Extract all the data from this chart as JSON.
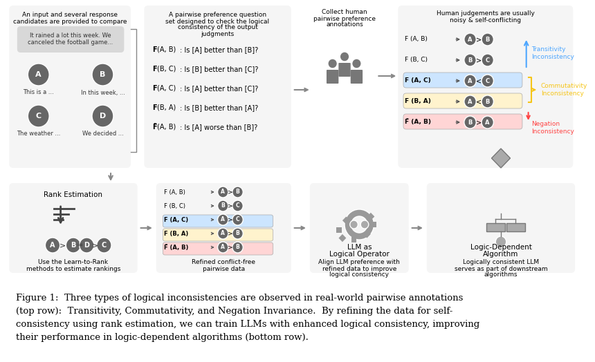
{
  "figure_width": 8.6,
  "figure_height": 5.24,
  "dpi": 100,
  "bg_color": "#ffffff",
  "caption_lines": [
    "Figure 1:  Three types of logical inconsistencies are observed in real-world pairwise annotations",
    "(top row):  Transitivity, Commutativity, and Negation Invariance.  By refining the data for self-",
    "consistency using rank estimation, we can train LLMs with enhanced logical consistency, improving",
    "their performance in logic-dependent algorithms (bottom row)."
  ],
  "panel_bg": "#f0f0f0",
  "panel_bg2": "#e8e8e8",
  "dark_circle": "#555555",
  "blue_color": "#4da6ff",
  "yellow_color": "#f5c518",
  "red_color": "#ff4444",
  "orange_color": "#ff8c00",
  "blue_box": "#cce5ff",
  "yellow_box": "#fff3cd",
  "red_box": "#ffd5d5",
  "arrow_color": "#555555",
  "transitivity_color": "#4da6ff",
  "commutativity_color": "#f5c518",
  "negation_color": "#ff4444"
}
